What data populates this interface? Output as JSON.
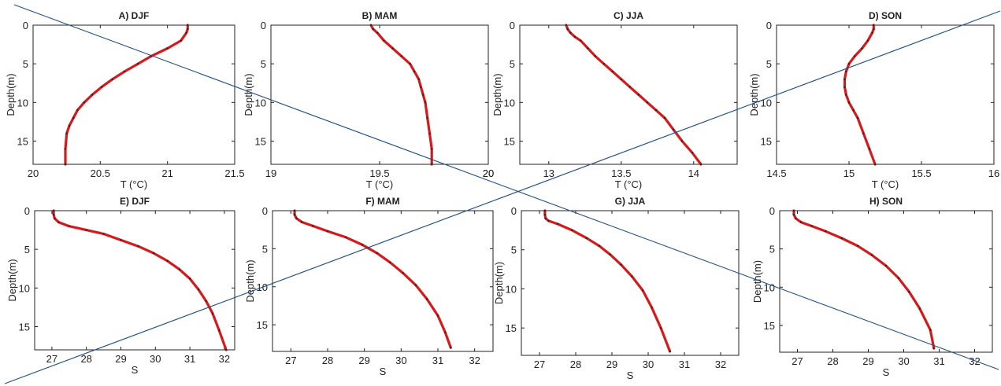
{
  "chart_data": [
    {
      "type": "line",
      "title": "A) DJF",
      "xlabel": "T (°C)",
      "ylabel": "Depth(m)",
      "xlim": [
        20,
        21.5
      ],
      "ylim": [
        0,
        18
      ],
      "xticks": [
        "20",
        "20.5",
        "21",
        "21.5"
      ],
      "yticks": [
        "0",
        "5",
        "10",
        "15"
      ],
      "grid": false,
      "series": [
        {
          "x": [
            21.15,
            21.15,
            21.14,
            21.1,
            21.0,
            20.88,
            20.78,
            20.68,
            20.59,
            20.51,
            20.44,
            20.38,
            20.33,
            20.3,
            20.27,
            20.25,
            20.24,
            20.24
          ],
          "y": [
            0,
            0.5,
            1,
            2,
            3,
            4,
            5,
            6,
            7,
            8,
            9,
            10,
            11,
            12,
            13,
            14,
            16,
            18
          ]
        }
      ]
    },
    {
      "type": "line",
      "title": "B) MAM",
      "xlabel": "T (°C)",
      "ylabel": "Depth(m)",
      "xlim": [
        19,
        20
      ],
      "ylim": [
        0,
        18
      ],
      "xticks": [
        "19",
        "19.5",
        "20",
        "20"
      ],
      "yticks": [
        "0",
        "5",
        "10",
        "15"
      ],
      "grid": false,
      "series": [
        {
          "x": [
            19.46,
            19.47,
            19.49,
            19.52,
            19.56,
            19.6,
            19.64,
            19.66,
            19.68,
            19.69,
            19.7,
            19.71,
            19.72,
            19.73,
            19.74,
            19.74
          ],
          "y": [
            0,
            0.5,
            1,
            2,
            3,
            4,
            5,
            6,
            7,
            8,
            9,
            10,
            12,
            14,
            16,
            18
          ]
        }
      ]
    },
    {
      "type": "line",
      "title": "C) JJA",
      "xlabel": "T (°C)",
      "ylabel": "Depth(m)",
      "xlim": [
        12.8,
        14.3
      ],
      "ylim": [
        0,
        18
      ],
      "xticks": [
        "13",
        "13.5",
        "14"
      ],
      "yticks": [
        "0",
        "5",
        "10",
        "15"
      ],
      "grid": false,
      "series": [
        {
          "x": [
            13.12,
            13.13,
            13.15,
            13.18,
            13.22,
            13.27,
            13.32,
            13.38,
            13.44,
            13.5,
            13.56,
            13.62,
            13.68,
            13.74,
            13.8,
            13.86,
            13.92,
            13.99,
            14.05
          ],
          "y": [
            0,
            0.5,
            1,
            1.5,
            2,
            3,
            4,
            5,
            6,
            7,
            8,
            9,
            10,
            11,
            12,
            13.5,
            15,
            16.5,
            18
          ]
        }
      ]
    },
    {
      "type": "line",
      "title": "D) SON",
      "xlabel": "T (°C)",
      "ylabel": "Depth(m)",
      "xlim": [
        14.5,
        16
      ],
      "ylim": [
        0,
        18
      ],
      "xticks": [
        "14.5",
        "15",
        "15.5",
        "16"
      ],
      "yticks": [
        "0",
        "5",
        "10",
        "15"
      ],
      "grid": false,
      "series": [
        {
          "x": [
            15.17,
            15.17,
            15.16,
            15.13,
            15.09,
            15.04,
            15.0,
            14.98,
            14.97,
            14.97,
            14.98,
            15.0,
            15.03,
            15.06,
            15.1,
            15.14,
            15.18
          ],
          "y": [
            0,
            0.5,
            1,
            2,
            3,
            4,
            5,
            6,
            7,
            8,
            9,
            10,
            11,
            12,
            14,
            16,
            18
          ]
        }
      ]
    },
    {
      "type": "line",
      "title": "E) DJF",
      "xlabel": "S",
      "ylabel": "Depth(m)",
      "xlim": [
        26.5,
        32.3
      ],
      "ylim": [
        0,
        18
      ],
      "xticks": [
        "27",
        "28",
        "29",
        "30",
        "31",
        "32"
      ],
      "yticks": [
        "0",
        "5",
        "10",
        "15"
      ],
      "grid": false,
      "series": [
        {
          "x": [
            27.05,
            27.05,
            27.08,
            27.2,
            27.5,
            28.0,
            28.5,
            29.0,
            29.5,
            29.95,
            30.35,
            30.7,
            31.0,
            31.25,
            31.47,
            31.66,
            31.85,
            32.05
          ],
          "y": [
            0,
            0.5,
            1,
            1.5,
            2,
            2.5,
            3,
            3.8,
            4.6,
            5.5,
            6.5,
            7.6,
            8.8,
            10.2,
            11.7,
            13.3,
            15.5,
            18
          ]
        }
      ]
    },
    {
      "type": "line",
      "title": "F) MAM",
      "xlabel": "S",
      "ylabel": "Depth(m)",
      "xlim": [
        26.5,
        32.5
      ],
      "ylim": [
        0,
        18.5
      ],
      "xticks": [
        "27",
        "28",
        "29",
        "30",
        "31",
        "32"
      ],
      "yticks": [
        "0",
        "5",
        "10",
        "15"
      ],
      "grid": false,
      "series": [
        {
          "x": [
            27.1,
            27.1,
            27.15,
            27.3,
            27.6,
            28.0,
            28.5,
            28.95,
            29.35,
            29.7,
            30.05,
            30.4,
            30.7,
            31.0,
            31.2,
            31.35
          ],
          "y": [
            0,
            0.5,
            1,
            1.5,
            2,
            2.7,
            3.5,
            4.5,
            5.6,
            6.8,
            8.2,
            9.8,
            11.6,
            13.8,
            16,
            18
          ]
        }
      ]
    },
    {
      "type": "line",
      "title": "G) JJA",
      "xlabel": "S",
      "ylabel": "Depth(m)",
      "xlim": [
        26.5,
        32.5
      ],
      "ylim": [
        0,
        18.5
      ],
      "xticks": [
        "27",
        "28",
        "29",
        "30",
        "31",
        "32"
      ],
      "yticks": [
        "0",
        "5",
        "10",
        "15"
      ],
      "grid": false,
      "series": [
        {
          "x": [
            27.15,
            27.15,
            27.17,
            27.25,
            27.5,
            27.9,
            28.3,
            28.65,
            28.95,
            29.25,
            29.55,
            29.85,
            30.1,
            30.35,
            30.6
          ],
          "y": [
            0,
            0.5,
            1,
            1.3,
            1.7,
            2.5,
            3.5,
            4.5,
            5.6,
            6.9,
            8.4,
            10.2,
            12.4,
            15,
            18
          ]
        }
      ]
    },
    {
      "type": "line",
      "title": "H) SON",
      "xlabel": "S",
      "ylabel": "Depth(m)",
      "xlim": [
        26.5,
        32.5
      ],
      "ylim": [
        0,
        18.5
      ],
      "xticks": [
        "27",
        "28",
        "29",
        "30",
        "31",
        "32"
      ],
      "yticks": [
        "0",
        "5",
        "10",
        "15"
      ],
      "grid": false,
      "series": [
        {
          "x": [
            26.9,
            26.9,
            26.95,
            27.1,
            27.4,
            27.8,
            28.25,
            28.7,
            29.1,
            29.5,
            29.85,
            30.15,
            30.45,
            30.75,
            30.85
          ],
          "y": [
            0,
            0.5,
            1,
            1.5,
            2,
            2.7,
            3.6,
            4.6,
            5.8,
            7.2,
            8.8,
            10.6,
            12.8,
            15.6,
            18
          ]
        }
      ]
    }
  ],
  "colors": {
    "profile_line": "#d7191c",
    "profile_markers": "#222222",
    "overlay_lines": "#1f4e8c"
  }
}
